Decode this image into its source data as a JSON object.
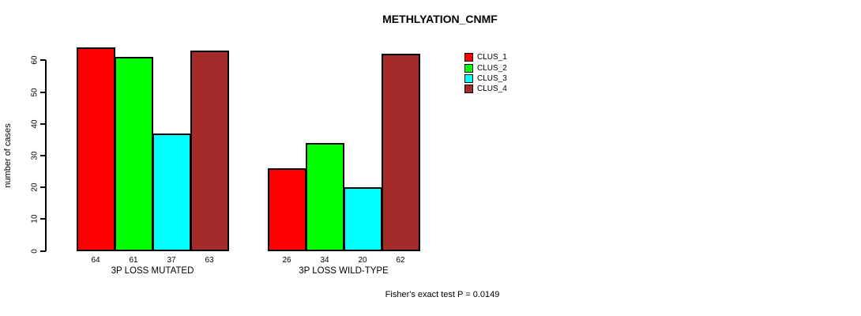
{
  "chart_data": {
    "type": "bar",
    "title": "METHLYATION_CNMF",
    "ylabel": "number of cases",
    "xlabel": "",
    "yticks": [
      0,
      10,
      20,
      30,
      40,
      50,
      60
    ],
    "ylim": [
      0,
      66
    ],
    "grid": false,
    "legend_position": "right-of-plot",
    "categories": [
      "3P LOSS MUTATED",
      "3P LOSS WILD-TYPE"
    ],
    "series": [
      {
        "name": "CLUS_1",
        "color": "#FF0000",
        "values": [
          64,
          26
        ]
      },
      {
        "name": "CLUS_2",
        "color": "#00FF00",
        "values": [
          61,
          34
        ]
      },
      {
        "name": "CLUS_3",
        "color": "#00FFFF",
        "values": [
          37,
          20
        ]
      },
      {
        "name": "CLUS_4",
        "color": "#A52A2A",
        "values": [
          63,
          62
        ]
      }
    ],
    "bar_value_labels": [
      [
        64,
        61,
        37,
        63
      ],
      [
        26,
        34,
        20,
        62
      ]
    ]
  },
  "caption": "Fisher's exact test P = 0.0149"
}
